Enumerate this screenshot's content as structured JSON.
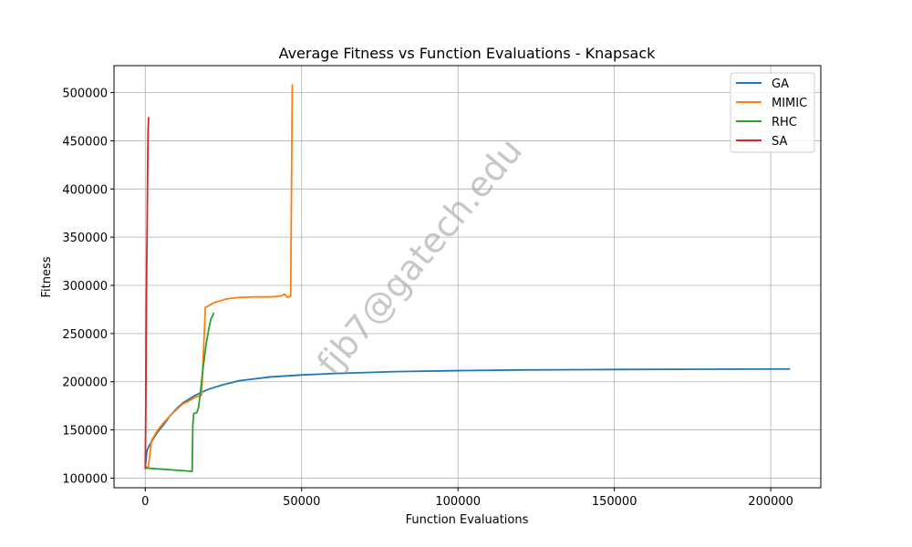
{
  "chart_data": {
    "type": "line",
    "title": "Average Fitness vs Function Evaluations - Knapsack",
    "xlabel": "Function Evaluations",
    "ylabel": "Fitness",
    "xlim": [
      -10000,
      216000
    ],
    "ylim": [
      90000,
      528000
    ],
    "xticks": [
      0,
      50000,
      100000,
      150000,
      200000
    ],
    "xtick_labels": [
      "0",
      "50000",
      "100000",
      "150000",
      "200000"
    ],
    "yticks": [
      100000,
      150000,
      200000,
      250000,
      300000,
      350000,
      400000,
      450000,
      500000
    ],
    "ytick_labels": [
      "100000",
      "150000",
      "200000",
      "250000",
      "300000",
      "350000",
      "400000",
      "450000",
      "500000"
    ],
    "grid": true,
    "legend_position": "top-right",
    "series": [
      {
        "name": "GA",
        "color": "#1f77b4",
        "x": [
          0,
          500,
          1000,
          2000,
          4000,
          6000,
          8000,
          10000,
          12000,
          14000,
          16000,
          20000,
          25000,
          30000,
          40000,
          50000,
          60000,
          80000,
          100000,
          120000,
          150000,
          180000,
          206000
        ],
        "y": [
          111000,
          128000,
          132000,
          138000,
          148000,
          156000,
          165000,
          172000,
          178000,
          182000,
          186000,
          192000,
          197000,
          201000,
          205000,
          207000,
          208500,
          210500,
          211500,
          212200,
          212700,
          213000,
          213200
        ]
      },
      {
        "name": "MIMIC",
        "color": "#ff7f0e",
        "x": [
          0,
          1000,
          2000,
          4000,
          6000,
          8000,
          10000,
          12000,
          14000,
          16000,
          18000,
          19000,
          19200,
          22000,
          26000,
          30000,
          35000,
          40000,
          42000,
          43500,
          44500,
          45500,
          46500,
          47000
        ],
        "y": [
          111000,
          112000,
          139000,
          150000,
          158000,
          165000,
          171000,
          177000,
          180000,
          184000,
          186000,
          260000,
          277000,
          282000,
          286000,
          287500,
          288000,
          288000,
          288500,
          289000,
          291000,
          287500,
          289000,
          508000
        ]
      },
      {
        "name": "RHC",
        "color": "#2ca02c",
        "x": [
          0,
          15000,
          15200,
          15500,
          16500,
          17000,
          17500,
          18500,
          19500,
          20500,
          21000,
          21500,
          21800
        ],
        "y": [
          110500,
          107000,
          155000,
          167000,
          168000,
          173000,
          185000,
          215000,
          240000,
          258000,
          265000,
          268000,
          271000
        ]
      },
      {
        "name": "SA",
        "color": "#d62728",
        "x": [
          0,
          150,
          300,
          450,
          600,
          750,
          900,
          1050
        ],
        "y": [
          110000,
          163000,
          250000,
          320000,
          360000,
          420000,
          460000,
          474000
        ]
      }
    ]
  },
  "watermark": "fjb7@gatech.edu"
}
